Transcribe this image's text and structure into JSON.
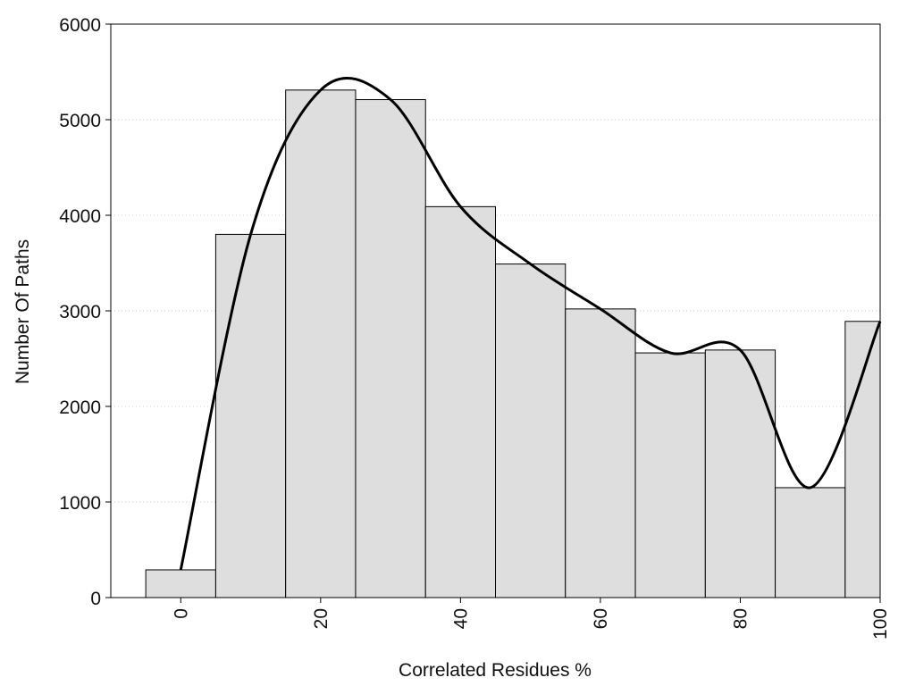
{
  "chart_data": {
    "type": "bar",
    "title": "",
    "xlabel": "Correlated Residues %",
    "ylabel": "Number Of Paths",
    "x_ticks": [
      0,
      20,
      40,
      60,
      80,
      100
    ],
    "y_ticks": [
      0,
      1000,
      2000,
      3000,
      4000,
      5000,
      6000
    ],
    "xlim": [
      -10,
      100
    ],
    "ylim": [
      0,
      6000
    ],
    "bin_width": 10,
    "bins": [
      {
        "x": 0,
        "value": 290
      },
      {
        "x": 10,
        "value": 3800
      },
      {
        "x": 20,
        "value": 5310
      },
      {
        "x": 30,
        "value": 5210
      },
      {
        "x": 40,
        "value": 4090
      },
      {
        "x": 50,
        "value": 3490
      },
      {
        "x": 60,
        "value": 3020
      },
      {
        "x": 70,
        "value": 2560
      },
      {
        "x": 80,
        "value": 2590
      },
      {
        "x": 90,
        "value": 1150
      },
      {
        "x": 100,
        "value": 2890
      }
    ],
    "series": [
      {
        "type": "line",
        "smooth": true,
        "points": [
          [
            0,
            290
          ],
          [
            10,
            3800
          ],
          [
            20,
            5310
          ],
          [
            30,
            5210
          ],
          [
            40,
            4090
          ],
          [
            50,
            3490
          ],
          [
            60,
            3020
          ],
          [
            70,
            2560
          ],
          [
            80,
            2590
          ],
          [
            90,
            1150
          ],
          [
            100,
            2890
          ]
        ]
      }
    ],
    "grid": {
      "y": true,
      "style": "dotted"
    },
    "colors": {
      "bar_fill": "#dedede",
      "bar_stroke": "#000000",
      "line": "#000000",
      "grid": "#cccccc"
    }
  }
}
